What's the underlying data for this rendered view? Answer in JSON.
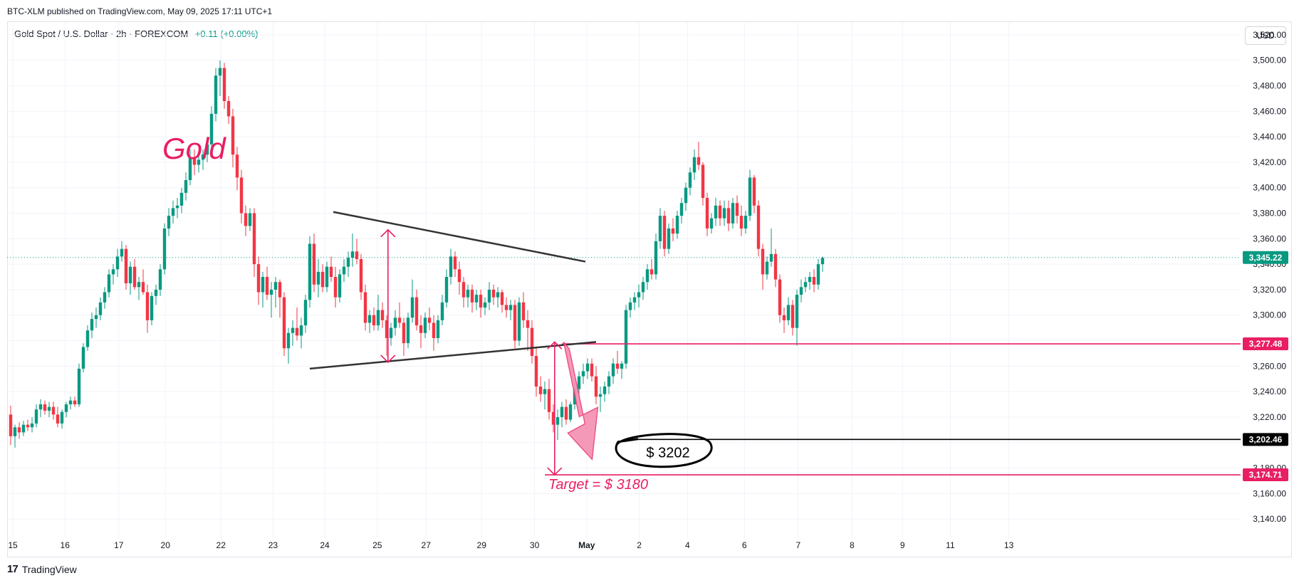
{
  "header": {
    "publish_text": "BTC-XLM published on TradingView.com, May 09, 2025 17:11 UTC+1",
    "symbol_text": "Gold Spot / U.S. Dollar · 2h · FOREXCOM",
    "change_text": "+0.11 (+0.00%)",
    "currency": "USD"
  },
  "footer": {
    "brand": "TradingView",
    "logo_icon": "tradingview-logo-icon"
  },
  "colors": {
    "up": "#089981",
    "down": "#f23645",
    "annotation": "#e91e63",
    "trendline": "#333333",
    "last_price_line": "#089981"
  },
  "chart_data": {
    "type": "candlestick",
    "title": "",
    "ylim": [
      3125,
      3530
    ],
    "y_ticks": [
      "3,140.00",
      "3,160.00",
      "3,180.00",
      "3,200.00",
      "3,220.00",
      "3,240.00",
      "3,260.00",
      "3,280.00",
      "3,300.00",
      "3,320.00",
      "3,340.00",
      "3,360.00",
      "3,380.00",
      "3,400.00",
      "3,420.00",
      "3,440.00",
      "3,460.00",
      "3,480.00",
      "3,500.00",
      "3,520.00"
    ],
    "x_ticks": [
      {
        "label": "15",
        "pos": 0.5
      },
      {
        "label": "16",
        "pos": 12.7
      },
      {
        "label": "17",
        "pos": 25.3
      },
      {
        "label": "20",
        "pos": 36.2
      },
      {
        "label": "22",
        "pos": 49.2
      },
      {
        "label": "23",
        "pos": 61.4
      },
      {
        "label": "24",
        "pos": 73.5
      },
      {
        "label": "25",
        "pos": 85.8
      },
      {
        "label": "27",
        "pos": 97.2
      },
      {
        "label": "29",
        "pos": 110.2
      },
      {
        "label": "30",
        "pos": 122.6
      },
      {
        "label": "May",
        "pos": 134.8,
        "bold": true
      },
      {
        "label": "2",
        "pos": 147.1
      },
      {
        "label": "4",
        "pos": 158.4
      },
      {
        "label": "6",
        "pos": 171.7
      },
      {
        "label": "7",
        "pos": 184.3
      },
      {
        "label": "8",
        "pos": 196.9
      },
      {
        "label": "9",
        "pos": 208.7
      },
      {
        "label": "11",
        "pos": 219.9
      },
      {
        "label": "13",
        "pos": 233.6
      }
    ],
    "candles": [
      [
        3222,
        3229,
        3198,
        3205
      ],
      [
        3205,
        3214,
        3196,
        3212
      ],
      [
        3212,
        3216,
        3203,
        3208
      ],
      [
        3208,
        3217,
        3205,
        3214
      ],
      [
        3214,
        3218,
        3209,
        3212
      ],
      [
        3212,
        3220,
        3208,
        3215
      ],
      [
        3215,
        3230,
        3212,
        3226
      ],
      [
        3226,
        3234,
        3220,
        3230
      ],
      [
        3230,
        3233,
        3222,
        3225
      ],
      [
        3225,
        3232,
        3220,
        3228
      ],
      [
        3228,
        3232,
        3218,
        3222
      ],
      [
        3222,
        3228,
        3212,
        3215
      ],
      [
        3215,
        3226,
        3211,
        3224
      ],
      [
        3224,
        3232,
        3220,
        3230
      ],
      [
        3230,
        3236,
        3226,
        3233
      ],
      [
        3233,
        3236,
        3228,
        3230
      ],
      [
        3230,
        3262,
        3228,
        3258
      ],
      [
        3258,
        3278,
        3255,
        3275
      ],
      [
        3275,
        3292,
        3272,
        3288
      ],
      [
        3288,
        3302,
        3282,
        3297
      ],
      [
        3297,
        3306,
        3290,
        3300
      ],
      [
        3300,
        3314,
        3296,
        3310
      ],
      [
        3310,
        3322,
        3305,
        3318
      ],
      [
        3318,
        3336,
        3314,
        3332
      ],
      [
        3332,
        3340,
        3324,
        3336
      ],
      [
        3336,
        3352,
        3330,
        3346
      ],
      [
        3346,
        3358,
        3342,
        3352
      ],
      [
        3352,
        3355,
        3320,
        3325
      ],
      [
        3325,
        3342,
        3316,
        3338
      ],
      [
        3338,
        3344,
        3320,
        3322
      ],
      [
        3322,
        3330,
        3312,
        3326
      ],
      [
        3326,
        3336,
        3316,
        3318
      ],
      [
        3318,
        3324,
        3286,
        3296
      ],
      [
        3296,
        3318,
        3292,
        3315
      ],
      [
        3315,
        3324,
        3308,
        3320
      ],
      [
        3320,
        3340,
        3315,
        3336
      ],
      [
        3336,
        3372,
        3332,
        3368
      ],
      [
        3368,
        3384,
        3362,
        3378
      ],
      [
        3378,
        3390,
        3372,
        3384
      ],
      [
        3384,
        3392,
        3376,
        3386
      ],
      [
        3386,
        3400,
        3380,
        3396
      ],
      [
        3396,
        3412,
        3390,
        3406
      ],
      [
        3406,
        3430,
        3402,
        3424
      ],
      [
        3424,
        3430,
        3410,
        3418
      ],
      [
        3418,
        3428,
        3412,
        3422
      ],
      [
        3422,
        3430,
        3414,
        3426
      ],
      [
        3426,
        3440,
        3420,
        3434
      ],
      [
        3434,
        3464,
        3428,
        3458
      ],
      [
        3458,
        3494,
        3452,
        3488
      ],
      [
        3488,
        3500,
        3472,
        3494
      ],
      [
        3494,
        3498,
        3462,
        3468
      ],
      [
        3468,
        3472,
        3450,
        3456
      ],
      [
        3456,
        3462,
        3416,
        3426
      ],
      [
        3426,
        3432,
        3398,
        3408
      ],
      [
        3408,
        3414,
        3372,
        3380
      ],
      [
        3380,
        3386,
        3362,
        3370
      ],
      [
        3370,
        3384,
        3366,
        3380
      ],
      [
        3380,
        3384,
        3330,
        3340
      ],
      [
        3340,
        3346,
        3308,
        3318
      ],
      [
        3318,
        3334,
        3306,
        3330
      ],
      [
        3330,
        3338,
        3312,
        3316
      ],
      [
        3316,
        3326,
        3298,
        3320
      ],
      [
        3320,
        3330,
        3306,
        3326
      ],
      [
        3326,
        3328,
        3298,
        3314
      ],
      [
        3314,
        3318,
        3268,
        3274
      ],
      [
        3274,
        3290,
        3262,
        3286
      ],
      [
        3286,
        3296,
        3276,
        3290
      ],
      [
        3290,
        3306,
        3280,
        3284
      ],
      [
        3284,
        3298,
        3274,
        3292
      ],
      [
        3292,
        3316,
        3286,
        3312
      ],
      [
        3312,
        3362,
        3306,
        3356
      ],
      [
        3356,
        3364,
        3318,
        3324
      ],
      [
        3324,
        3344,
        3314,
        3334
      ],
      [
        3334,
        3340,
        3318,
        3322
      ],
      [
        3322,
        3342,
        3318,
        3338
      ],
      [
        3338,
        3346,
        3326,
        3330
      ],
      [
        3330,
        3338,
        3306,
        3314
      ],
      [
        3314,
        3336,
        3310,
        3332
      ],
      [
        3332,
        3344,
        3326,
        3338
      ],
      [
        3338,
        3350,
        3330,
        3345
      ],
      [
        3345,
        3364,
        3338,
        3350
      ],
      [
        3350,
        3360,
        3340,
        3344
      ],
      [
        3344,
        3348,
        3312,
        3318
      ],
      [
        3318,
        3324,
        3288,
        3294
      ],
      [
        3294,
        3304,
        3286,
        3300
      ],
      [
        3300,
        3306,
        3288,
        3292
      ],
      [
        3292,
        3316,
        3288,
        3304
      ],
      [
        3304,
        3310,
        3290,
        3296
      ],
      [
        3296,
        3300,
        3268,
        3282
      ],
      [
        3282,
        3294,
        3276,
        3290
      ],
      [
        3290,
        3304,
        3284,
        3298
      ],
      [
        3298,
        3310,
        3290,
        3294
      ],
      [
        3294,
        3298,
        3268,
        3278
      ],
      [
        3278,
        3302,
        3274,
        3298
      ],
      [
        3298,
        3328,
        3294,
        3314
      ],
      [
        3314,
        3320,
        3288,
        3292
      ],
      [
        3292,
        3300,
        3274,
        3286
      ],
      [
        3286,
        3302,
        3282,
        3298
      ],
      [
        3298,
        3306,
        3288,
        3294
      ],
      [
        3294,
        3300,
        3272,
        3282
      ],
      [
        3282,
        3300,
        3278,
        3296
      ],
      [
        3296,
        3316,
        3292,
        3310
      ],
      [
        3310,
        3336,
        3306,
        3330
      ],
      [
        3330,
        3352,
        3324,
        3346
      ],
      [
        3346,
        3350,
        3330,
        3336
      ],
      [
        3336,
        3342,
        3316,
        3326
      ],
      [
        3326,
        3330,
        3306,
        3314
      ],
      [
        3314,
        3324,
        3306,
        3320
      ],
      [
        3320,
        3324,
        3302,
        3310
      ],
      [
        3310,
        3320,
        3304,
        3316
      ],
      [
        3316,
        3320,
        3298,
        3306
      ],
      [
        3306,
        3314,
        3300,
        3310
      ],
      [
        3310,
        3326,
        3304,
        3320
      ],
      [
        3320,
        3324,
        3308,
        3314
      ],
      [
        3314,
        3322,
        3306,
        3318
      ],
      [
        3318,
        3320,
        3302,
        3308
      ],
      [
        3308,
        3314,
        3298,
        3304
      ],
      [
        3304,
        3312,
        3296,
        3308
      ],
      [
        3308,
        3312,
        3274,
        3280
      ],
      [
        3280,
        3314,
        3276,
        3310
      ],
      [
        3310,
        3318,
        3290,
        3296
      ],
      [
        3296,
        3304,
        3272,
        3290
      ],
      [
        3290,
        3296,
        3262,
        3268
      ],
      [
        3268,
        3274,
        3236,
        3244
      ],
      [
        3244,
        3252,
        3232,
        3238
      ],
      [
        3238,
        3248,
        3226,
        3242
      ],
      [
        3242,
        3250,
        3218,
        3224
      ],
      [
        3224,
        3230,
        3208,
        3214
      ],
      [
        3214,
        3226,
        3202,
        3220
      ],
      [
        3220,
        3232,
        3212,
        3228
      ],
      [
        3228,
        3234,
        3214,
        3218
      ],
      [
        3218,
        3232,
        3216,
        3230
      ],
      [
        3230,
        3246,
        3226,
        3242
      ],
      [
        3242,
        3256,
        3238,
        3252
      ],
      [
        3252,
        3262,
        3246,
        3256
      ],
      [
        3256,
        3266,
        3250,
        3262
      ],
      [
        3262,
        3266,
        3248,
        3252
      ],
      [
        3252,
        3260,
        3230,
        3236
      ],
      [
        3236,
        3244,
        3224,
        3238
      ],
      [
        3238,
        3248,
        3232,
        3244
      ],
      [
        3244,
        3256,
        3238,
        3252
      ],
      [
        3252,
        3266,
        3246,
        3262
      ],
      [
        3262,
        3272,
        3254,
        3258
      ],
      [
        3258,
        3264,
        3250,
        3262
      ],
      [
        3262,
        3308,
        3258,
        3304
      ],
      [
        3304,
        3314,
        3298,
        3310
      ],
      [
        3310,
        3318,
        3304,
        3314
      ],
      [
        3314,
        3324,
        3306,
        3318
      ],
      [
        3318,
        3330,
        3312,
        3326
      ],
      [
        3326,
        3340,
        3320,
        3336
      ],
      [
        3336,
        3344,
        3328,
        3332
      ],
      [
        3332,
        3364,
        3328,
        3358
      ],
      [
        3358,
        3384,
        3352,
        3378
      ],
      [
        3378,
        3382,
        3346,
        3352
      ],
      [
        3352,
        3372,
        3348,
        3368
      ],
      [
        3368,
        3376,
        3358,
        3364
      ],
      [
        3364,
        3382,
        3360,
        3378
      ],
      [
        3378,
        3392,
        3372,
        3388
      ],
      [
        3388,
        3404,
        3382,
        3400
      ],
      [
        3400,
        3416,
        3394,
        3412
      ],
      [
        3412,
        3430,
        3406,
        3424
      ],
      [
        3424,
        3436,
        3414,
        3418
      ],
      [
        3418,
        3420,
        3386,
        3392
      ],
      [
        3392,
        3396,
        3362,
        3368
      ],
      [
        3368,
        3380,
        3364,
        3376
      ],
      [
        3376,
        3392,
        3370,
        3386
      ],
      [
        3386,
        3390,
        3370,
        3376
      ],
      [
        3376,
        3390,
        3370,
        3384
      ],
      [
        3384,
        3390,
        3366,
        3372
      ],
      [
        3372,
        3392,
        3368,
        3388
      ],
      [
        3388,
        3394,
        3372,
        3378
      ],
      [
        3378,
        3386,
        3362,
        3368
      ],
      [
        3368,
        3382,
        3364,
        3378
      ],
      [
        3378,
        3414,
        3374,
        3408
      ],
      [
        3408,
        3410,
        3380,
        3386
      ],
      [
        3386,
        3390,
        3346,
        3352
      ],
      [
        3352,
        3356,
        3320,
        3332
      ],
      [
        3332,
        3346,
        3328,
        3342
      ],
      [
        3342,
        3368,
        3338,
        3348
      ],
      [
        3348,
        3352,
        3322,
        3328
      ],
      [
        3328,
        3332,
        3294,
        3300
      ],
      [
        3300,
        3306,
        3286,
        3296
      ],
      [
        3296,
        3314,
        3292,
        3308
      ],
      [
        3308,
        3312,
        3284,
        3290
      ],
      [
        3290,
        3320,
        3276,
        3316
      ],
      [
        3316,
        3328,
        3310,
        3322
      ],
      [
        3322,
        3330,
        3318,
        3326
      ],
      [
        3326,
        3334,
        3320,
        3330
      ],
      [
        3330,
        3336,
        3318,
        3324
      ],
      [
        3324,
        3344,
        3320,
        3340
      ],
      [
        3340,
        3346,
        3334,
        3345
      ]
    ],
    "last_price": 3345.22,
    "last_price_label": "3,345.22",
    "levels": [
      {
        "price": 3277.48,
        "label": "3,277.48",
        "color": "#e91e63",
        "x_start": 129
      },
      {
        "price": 3202.46,
        "label": "3,202.46",
        "color": "#000000",
        "x_start": 144
      },
      {
        "price": 3174.71,
        "label": "3,174.71",
        "color": "#e91e63",
        "x_start": 125
      }
    ],
    "trendlines": [
      {
        "x1": 75.5,
        "y1": 3381,
        "x2": 134.5,
        "y2": 3342
      },
      {
        "x1": 70,
        "y1": 3258,
        "x2": 137,
        "y2": 3279
      }
    ],
    "annotations": {
      "gold_label": "Gold",
      "circle_label": "$ 3202",
      "target_label": "Target = $ 3180"
    }
  }
}
